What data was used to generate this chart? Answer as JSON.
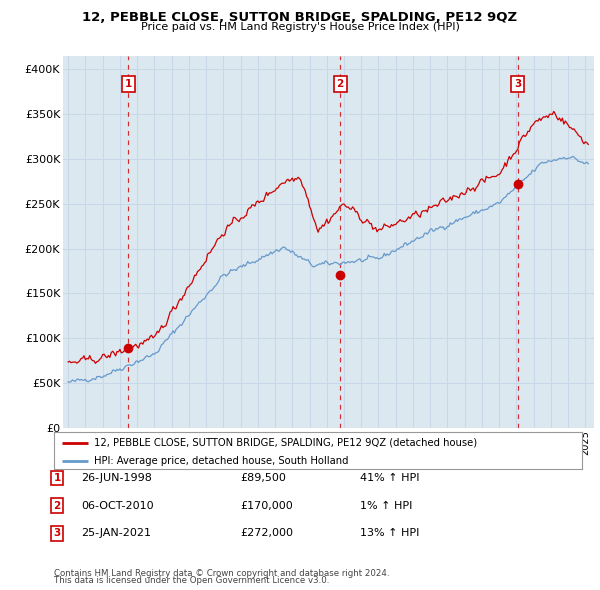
{
  "title": "12, PEBBLE CLOSE, SUTTON BRIDGE, SPALDING, PE12 9QZ",
  "subtitle": "Price paid vs. HM Land Registry's House Price Index (HPI)",
  "red_label": "12, PEBBLE CLOSE, SUTTON BRIDGE, SPALDING, PE12 9QZ (detached house)",
  "blue_label": "HPI: Average price, detached house, South Holland",
  "footnote1": "Contains HM Land Registry data © Crown copyright and database right 2024.",
  "footnote2": "This data is licensed under the Open Government Licence v3.0.",
  "transactions": [
    {
      "num": 1,
      "date": "26-JUN-1998",
      "price": "£89,500",
      "hpi": "41% ↑ HPI",
      "year": 1998.49,
      "value": 89500
    },
    {
      "num": 2,
      "date": "06-OCT-2010",
      "price": "£170,000",
      "hpi": "1% ↑ HPI",
      "year": 2010.77,
      "value": 170000
    },
    {
      "num": 3,
      "date": "25-JAN-2021",
      "price": "£272,000",
      "hpi": "13% ↑ HPI",
      "year": 2021.07,
      "value": 272000
    }
  ],
  "yticks": [
    0,
    50000,
    100000,
    150000,
    200000,
    250000,
    300000,
    350000,
    400000
  ],
  "ytick_labels": [
    "£0",
    "£50K",
    "£100K",
    "£150K",
    "£200K",
    "£250K",
    "£300K",
    "£350K",
    "£400K"
  ],
  "xmin": 1994.7,
  "xmax": 2025.5,
  "ymin": 0,
  "ymax": 415000,
  "red_color": "#cc0000",
  "blue_color": "#6699cc",
  "dashed_color": "#cc0000",
  "grid_color": "#c8d8e8",
  "bg_color": "#ffffff",
  "plot_bg": "#dce8f0"
}
